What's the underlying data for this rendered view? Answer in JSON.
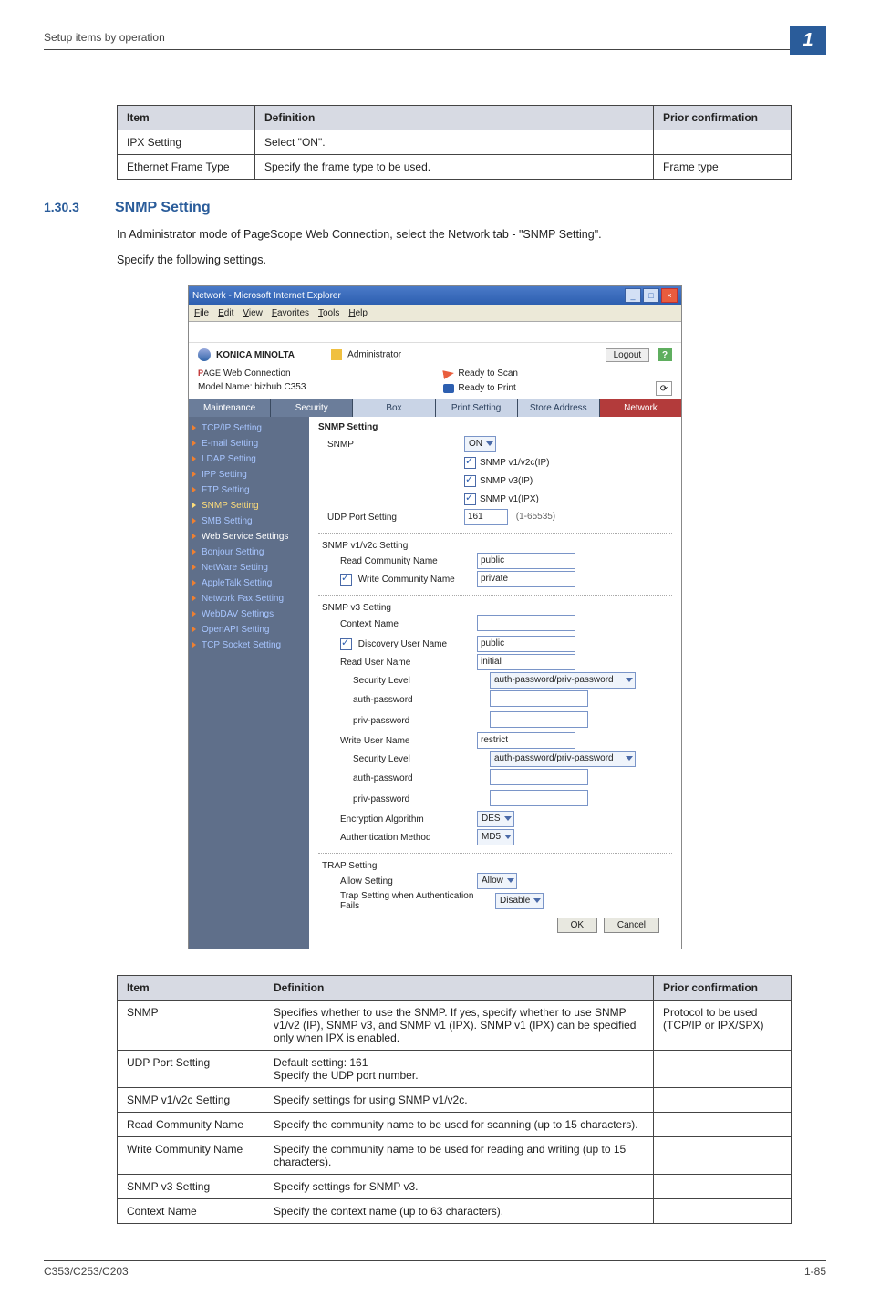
{
  "page_header": "Setup items by operation",
  "page_corner_number": "1",
  "table_top": {
    "columns": [
      "Item",
      "Definition",
      "Prior confirmation"
    ],
    "rows": [
      [
        "IPX Setting",
        "Select \"ON\".",
        ""
      ],
      [
        "Ethernet Frame Type",
        "Specify the frame type to be used.",
        "Frame type"
      ]
    ]
  },
  "section": {
    "number": "1.30.3",
    "title": "SNMP Setting",
    "para1": "In Administrator mode of PageScope Web Connection, select the Network tab - \"SNMP Setting\".",
    "para2": "Specify the following settings."
  },
  "screenshot": {
    "window_title": "Network - Microsoft Internet Explorer",
    "menubar": [
      "File",
      "Edit",
      "View",
      "Favorites",
      "Tools",
      "Help"
    ],
    "brand_text": "KONICA MINOLTA",
    "admin_label": "Administrator",
    "logout": "Logout",
    "web_connection_label": "PageScope Web Connection",
    "web_connection_short": "Web Connection",
    "model_line": "Model Name: bizhub C353",
    "ready_scan": "Ready to Scan",
    "ready_print": "Ready to Print",
    "tabs": [
      "Maintenance",
      "Security",
      "Box",
      "Print Setting",
      "Store Address",
      "Network"
    ],
    "active_tab_index": 5,
    "sidebar": [
      "TCP/IP Setting",
      "E-mail Setting",
      "LDAP Setting",
      "IPP Setting",
      "FTP Setting",
      "SNMP Setting",
      "SMB Setting",
      "Web Service Settings",
      "Bonjour Setting",
      "NetWare Setting",
      "AppleTalk Setting",
      "Network Fax Setting",
      "WebDAV Settings",
      "OpenAPI Setting",
      "TCP Socket Setting"
    ],
    "sidebar_white_indices": [
      7
    ],
    "sidebar_active_index": 5,
    "main_title": "SNMP Setting",
    "snmp_label": "SNMP",
    "snmp_value": "ON",
    "snmp_checks": [
      {
        "label": "SNMP v1/v2c(IP)",
        "checked": true
      },
      {
        "label": "SNMP v3(IP)",
        "checked": true
      },
      {
        "label": "SNMP v1(IPX)",
        "checked": true
      }
    ],
    "udp_label": "UDP Port Setting",
    "udp_value": "161",
    "udp_range": "(1-65535)",
    "v1v2c_heading": "SNMP v1/v2c Setting",
    "read_comm_label": "Read Community Name",
    "read_comm_value": "public",
    "write_comm_chk": true,
    "write_comm_label": "Write Community Name",
    "write_comm_value": "private",
    "v3_heading": "SNMP v3 Setting",
    "context_label": "Context Name",
    "context_value": "",
    "disc_chk": true,
    "disc_label": "Discovery User Name",
    "disc_value": "public",
    "read_user_label": "Read User Name",
    "read_user_value": "initial",
    "sec_level_label": "Security Level",
    "sec_level_value": "auth-password/priv-password",
    "auth_pwd_label": "auth-password",
    "priv_pwd_label": "priv-password",
    "write_user_label": "Write User Name",
    "write_user_value": "restrict",
    "enc_alg_label": "Encryption Algorithm",
    "enc_alg_value": "DES",
    "auth_method_label": "Authentication Method",
    "auth_method_value": "MD5",
    "trap_heading": "TRAP Setting",
    "allow_label": "Allow Setting",
    "allow_value": "Allow",
    "trap_fail_label": "Trap Setting when Authentication Fails",
    "trap_fail_value": "Disable",
    "ok_btn": "OK",
    "cancel_btn": "Cancel"
  },
  "table_bottom": {
    "columns": [
      "Item",
      "Definition",
      "Prior confirmation"
    ],
    "rows": [
      [
        "SNMP",
        "Specifies whether to use the SNMP. If yes, specify whether to use SNMP v1/v2 (IP), SNMP v3, and SNMP v1 (IPX). SNMP v1 (IPX) can be specified only when IPX is enabled.",
        "Protocol to be used (TCP/IP or IPX/SPX)"
      ],
      [
        "UDP Port Setting",
        "Default setting: 161\nSpecify the UDP port number.",
        ""
      ],
      [
        "SNMP v1/v2c Setting",
        "Specify settings for using SNMP v1/v2c.",
        ""
      ],
      [
        "Read Community Name",
        "Specify the community name to be used for scanning (up to 15 characters).",
        ""
      ],
      [
        "Write Community Name",
        "Specify the community name to be used for reading and writing (up to 15 characters).",
        ""
      ],
      [
        "SNMP v3 Setting",
        "Specify settings for SNMP v3.",
        ""
      ],
      [
        "Context Name",
        "Specify the context name (up to 63 characters).",
        ""
      ]
    ]
  },
  "footer_left": "C353/C253/C203",
  "footer_right": "1-85"
}
